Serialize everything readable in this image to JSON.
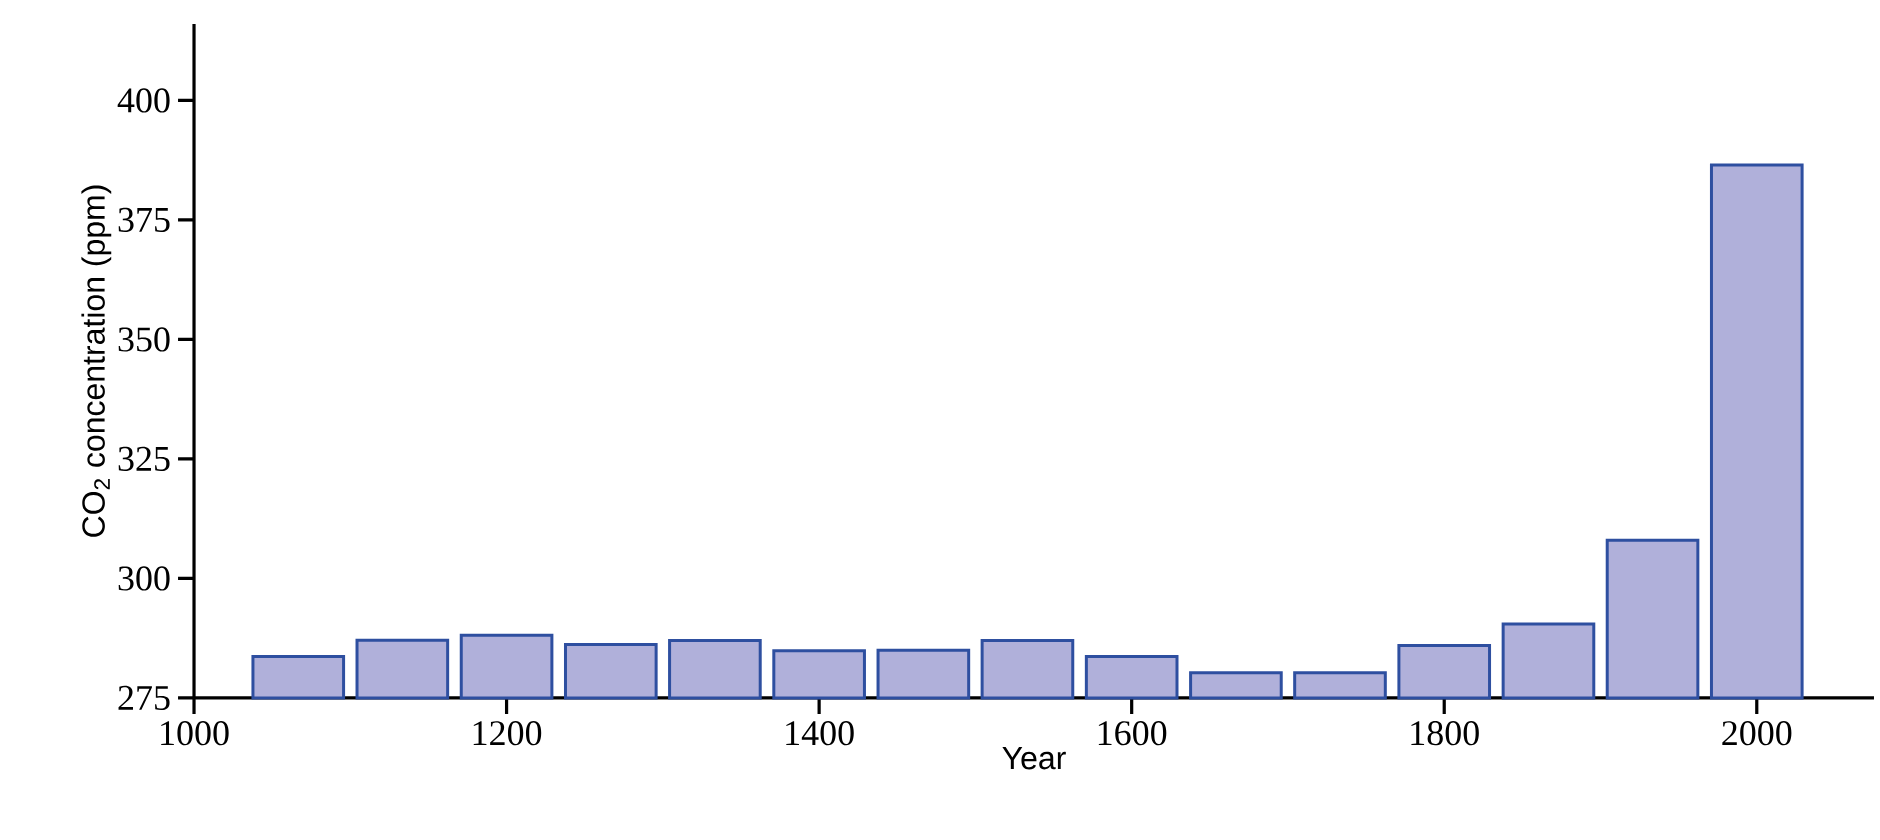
{
  "chart_data": {
    "type": "bar",
    "xlabel": "Year",
    "ylabel": "CO$_{2}$ concentration (ppm)",
    "x": [
      1066.7,
      1133.3,
      1200,
      1266.7,
      1333.3,
      1400,
      1466.7,
      1533.3,
      1600,
      1666.7,
      1733.3,
      1800,
      1866.7,
      1933.3,
      2000
    ],
    "values": [
      283.7,
      287.1,
      288.1,
      286.2,
      287.0,
      284.9,
      285.0,
      287.0,
      283.7,
      280.3,
      280.3,
      286.0,
      290.5,
      308,
      386.5
    ],
    "color": "#b0b0da",
    "xlim": [
      1000,
      2075
    ],
    "ylim": [
      275,
      416
    ],
    "xticks": [
      1000,
      1200,
      1400,
      1600,
      1800,
      2000
    ],
    "yticks": [
      275,
      300,
      325,
      350,
      375,
      400
    ]
  }
}
